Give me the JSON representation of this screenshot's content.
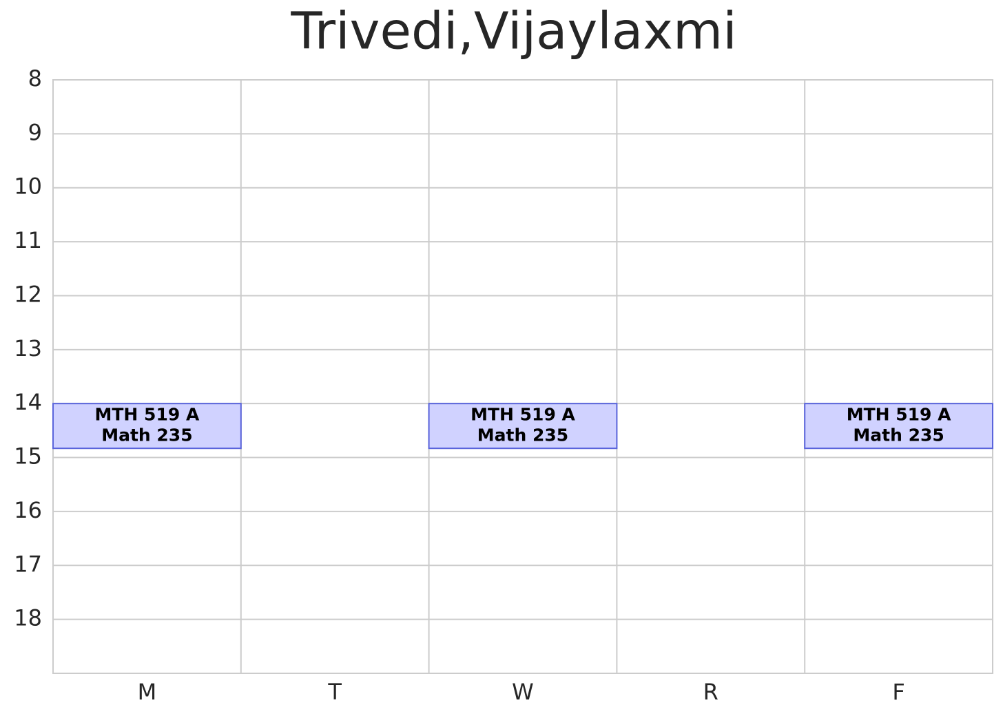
{
  "chart_data": {
    "type": "schedule",
    "title": "Trivedi,Vijaylaxmi",
    "categories": [
      "M",
      "T",
      "W",
      "R",
      "F"
    ],
    "ylim": [
      8,
      19
    ],
    "yticks": [
      8,
      9,
      10,
      11,
      12,
      13,
      14,
      15,
      16,
      17,
      18
    ],
    "y_inverted": true,
    "grid": true,
    "fill": "#d0d2ff",
    "edge": "#5a64dc",
    "events": [
      {
        "day": "M",
        "start": 14,
        "end": 14.83,
        "course": "MTH 519 A",
        "room": "Math 235"
      },
      {
        "day": "W",
        "start": 14,
        "end": 14.83,
        "course": "MTH 519 A",
        "room": "Math 235"
      },
      {
        "day": "F",
        "start": 14,
        "end": 14.83,
        "course": "MTH 519 A",
        "room": "Math 235"
      }
    ]
  }
}
